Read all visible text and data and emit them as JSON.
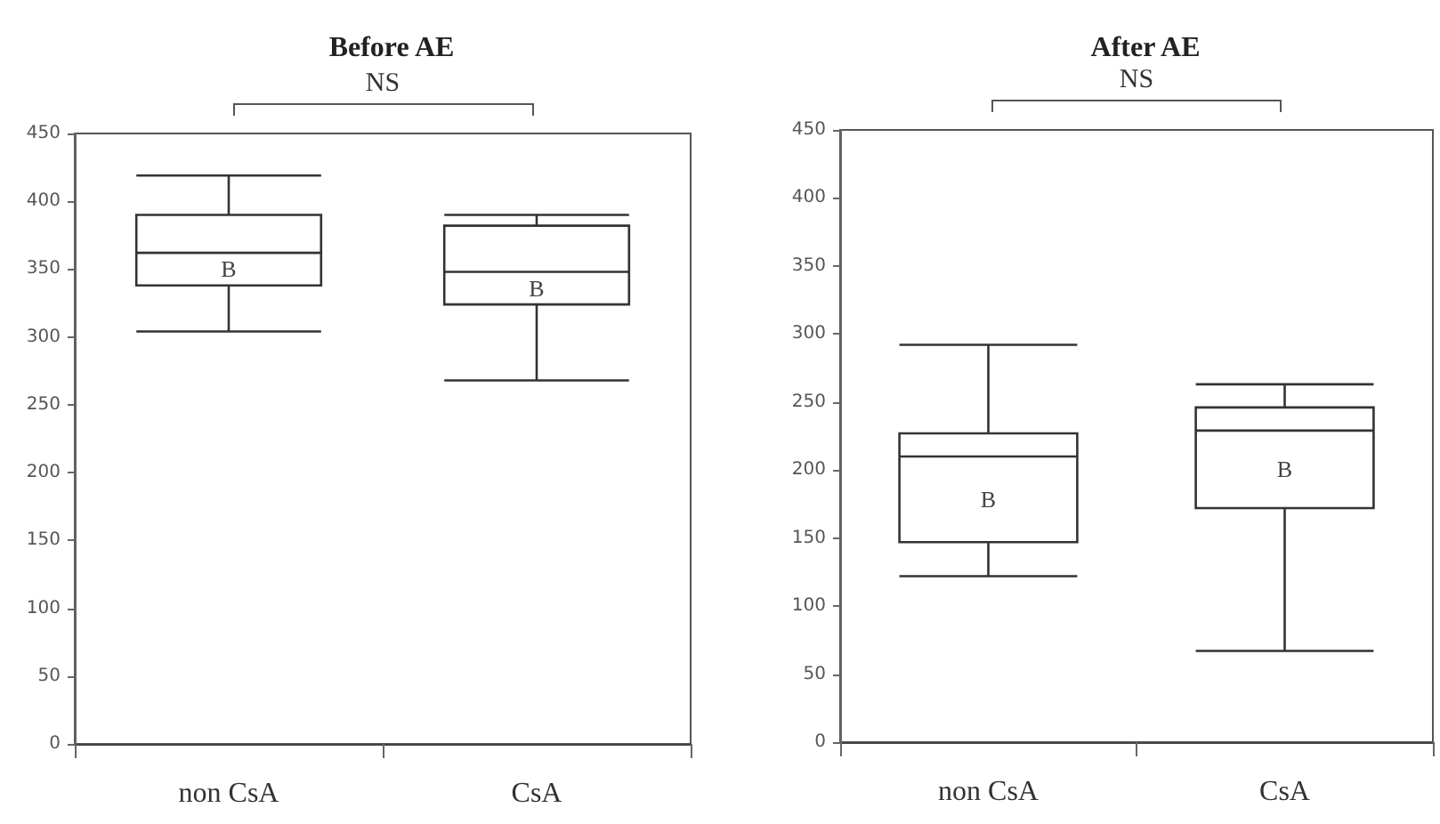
{
  "chart_data": [
    {
      "type": "box",
      "title": "Before AE",
      "categories": [
        "non CsA",
        "CsA"
      ],
      "boxes": [
        {
          "low": 304,
          "q1": 338,
          "median": 362,
          "q3": 390,
          "high": 419
        },
        {
          "low": 268,
          "q1": 324,
          "median": 348,
          "q3": 382,
          "high": 390
        }
      ],
      "ylim": [
        0,
        450
      ],
      "yticks": [
        0,
        50,
        100,
        150,
        200,
        250,
        300,
        350,
        400,
        450
      ],
      "grid": false,
      "annotations": [
        "NS",
        "B",
        "B"
      ]
    },
    {
      "type": "box",
      "title": "After AE",
      "categories": [
        "non CsA",
        "CsA"
      ],
      "boxes": [
        {
          "low": 122,
          "q1": 147,
          "median": 210,
          "q3": 227,
          "high": 292
        },
        {
          "low": 67,
          "q1": 172,
          "median": 229,
          "q3": 246,
          "high": 263
        }
      ],
      "ylim": [
        0,
        450
      ],
      "yticks": [
        0,
        50,
        100,
        150,
        200,
        250,
        300,
        350,
        400,
        450
      ],
      "grid": false,
      "annotations": [
        "NS",
        "B",
        "B"
      ]
    }
  ]
}
